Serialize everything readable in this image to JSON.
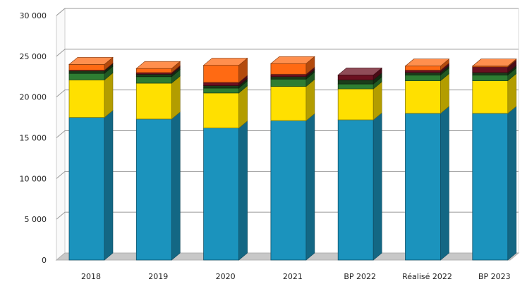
{
  "chart_data": {
    "type": "bar",
    "stacked": true,
    "three_d": true,
    "categories": [
      "2018",
      "2019",
      "2020",
      "2021",
      "BP 2022",
      "Réalisé 2022",
      "BP 2023"
    ],
    "y_ticks": [
      "0",
      "5 000",
      "10 000",
      "15 000",
      "20 000",
      "25 000",
      "30 000"
    ],
    "ylim": [
      0,
      30000
    ],
    "grid": true,
    "legend": "none",
    "series": [
      {
        "color": "#1b93bd",
        "values": [
          17500,
          17300,
          16200,
          17100,
          17200,
          18000,
          18000
        ]
      },
      {
        "color": "#ffe000",
        "values": [
          4600,
          4400,
          4300,
          4200,
          3800,
          4000,
          4000
        ]
      },
      {
        "color": "#2e7d32",
        "values": [
          800,
          800,
          600,
          900,
          600,
          700,
          700
        ]
      },
      {
        "color": "#1a3d1a",
        "values": [
          300,
          300,
          300,
          300,
          500,
          300,
          300
        ]
      },
      {
        "color": "#6b1020",
        "values": [
          100,
          200,
          400,
          300,
          600,
          300,
          700
        ]
      },
      {
        "color": "#ff6a13",
        "values": [
          700,
          500,
          2100,
          1300,
          0,
          500,
          100
        ]
      }
    ]
  }
}
